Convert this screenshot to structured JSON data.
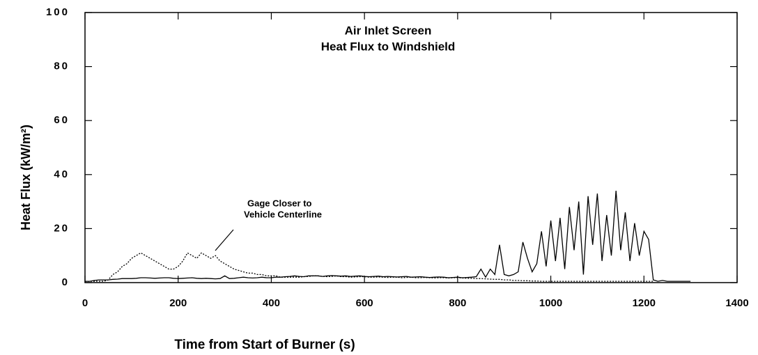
{
  "chart_data": {
    "type": "line",
    "title": "Air Inlet Screen",
    "subtitle": "Heat Flux to Windshield",
    "xlabel": "Time from Start of Burner   (s)",
    "ylabel": "Heat Flux   (kW/m²)",
    "annotation": [
      "Gage Closer to",
      "Vehicle Centerline"
    ],
    "x": [
      0,
      10,
      20,
      30,
      40,
      50,
      60,
      70,
      80,
      90,
      100,
      110,
      120,
      130,
      140,
      150,
      160,
      170,
      180,
      190,
      200,
      210,
      220,
      230,
      240,
      250,
      260,
      270,
      280,
      290,
      300,
      310,
      320,
      330,
      340,
      350,
      360,
      370,
      380,
      390,
      400,
      410,
      420,
      430,
      440,
      450,
      460,
      470,
      480,
      490,
      500,
      510,
      520,
      530,
      540,
      550,
      560,
      570,
      580,
      590,
      600,
      610,
      620,
      630,
      640,
      650,
      660,
      670,
      680,
      690,
      700,
      710,
      720,
      730,
      740,
      750,
      760,
      770,
      780,
      790,
      800,
      810,
      820,
      830,
      840,
      850,
      860,
      870,
      880,
      890,
      900,
      910,
      920,
      930,
      940,
      950,
      960,
      970,
      980,
      990,
      1000,
      1010,
      1020,
      1030,
      1040,
      1050,
      1060,
      1070,
      1080,
      1090,
      1100,
      1110,
      1120,
      1130,
      1140,
      1150,
      1160,
      1170,
      1180,
      1190,
      1200,
      1210,
      1220,
      1230,
      1240,
      1250,
      1260,
      1270,
      1280,
      1290,
      1300
    ],
    "series": [
      {
        "color": "#000000",
        "line_style": "solid",
        "values": [
          0.5,
          0.5,
          0.8,
          1,
          1,
          1,
          1.2,
          1.3,
          1.5,
          1.5,
          1.5,
          1.6,
          1.8,
          1.8,
          1.7,
          1.6,
          1.7,
          1.8,
          1.8,
          1.6,
          1.5,
          1.6,
          1.7,
          1.8,
          1.6,
          1.5,
          1.6,
          1.5,
          1.4,
          1.5,
          2.5,
          1.5,
          1.6,
          1.8,
          2,
          1.8,
          1.7,
          1.8,
          2,
          1.8,
          1.8,
          2,
          2,
          2.2,
          2.3,
          2.5,
          2.3,
          2.2,
          2.5,
          2.5,
          2.5,
          2.3,
          2.5,
          2.6,
          2.5,
          2.4,
          2.5,
          2.3,
          2.4,
          2.5,
          2.3,
          2.2,
          2.3,
          2.4,
          2.2,
          2.3,
          2.2,
          2.1,
          2.2,
          2.3,
          2,
          2.1,
          2.2,
          2,
          1.9,
          2,
          2.1,
          2,
          1.8,
          1.9,
          2,
          1.8,
          1.9,
          2,
          2.2,
          5,
          2,
          5,
          3,
          14,
          3,
          2.5,
          3,
          4,
          15,
          9,
          4,
          7,
          19,
          6,
          23,
          8,
          24,
          5,
          28,
          12,
          30,
          3,
          32,
          14,
          33,
          8,
          25,
          10,
          34,
          12,
          26,
          8,
          22,
          10,
          19,
          16,
          1,
          0.5,
          0.8,
          0.5,
          0.5,
          0.5,
          0.5,
          0.5,
          0.5
        ]
      },
      {
        "color": "#000000",
        "line_style": "dotted",
        "values": [
          0.5,
          0.5,
          0.5,
          0.5,
          0.5,
          1,
          3,
          4,
          6,
          7,
          9,
          10,
          11,
          10,
          9,
          8,
          7,
          6,
          5,
          5,
          6,
          8,
          11,
          10,
          9,
          11,
          10,
          9,
          10,
          8,
          7,
          6,
          5,
          4.5,
          4,
          3.5,
          3.5,
          3,
          3,
          2.5,
          2.5,
          2.5,
          2,
          2,
          2,
          2,
          2,
          2.2,
          2.3,
          2.5,
          2.5,
          2.3,
          2.2,
          2.3,
          2.5,
          2.2,
          2.2,
          2,
          2.1,
          2.2,
          2.2,
          2,
          2,
          2.1,
          2,
          1.9,
          2,
          2,
          1.8,
          1.9,
          2,
          1.8,
          1.8,
          1.9,
          1.8,
          1.7,
          1.8,
          1.8,
          1.7,
          1.8,
          1.8,
          1.7,
          1.6,
          1.6,
          1.5,
          1.5,
          1.4,
          1.3,
          1.2,
          1.2,
          1,
          1,
          0.8,
          0.8,
          0.7,
          0.7,
          0.6,
          0.6,
          0.5,
          0.5,
          0.5,
          0.5,
          0.5,
          0.5,
          0.5,
          0.5,
          0.5,
          0.5,
          0.5,
          0.5,
          0.5,
          0.5,
          0.5,
          0.5,
          0.5,
          0.5,
          0.5,
          0.5,
          0.5,
          0.5,
          0.5,
          0.5,
          0.5,
          null,
          null,
          null,
          null,
          null,
          null,
          null,
          null
        ]
      }
    ],
    "xlim": [
      0,
      1400
    ],
    "xticks": [
      0,
      200,
      400,
      600,
      800,
      1000,
      1200,
      1400
    ],
    "ylim": [
      0,
      100
    ],
    "yticks": [
      0,
      20,
      40,
      60,
      80,
      100
    ],
    "grid": false
  }
}
